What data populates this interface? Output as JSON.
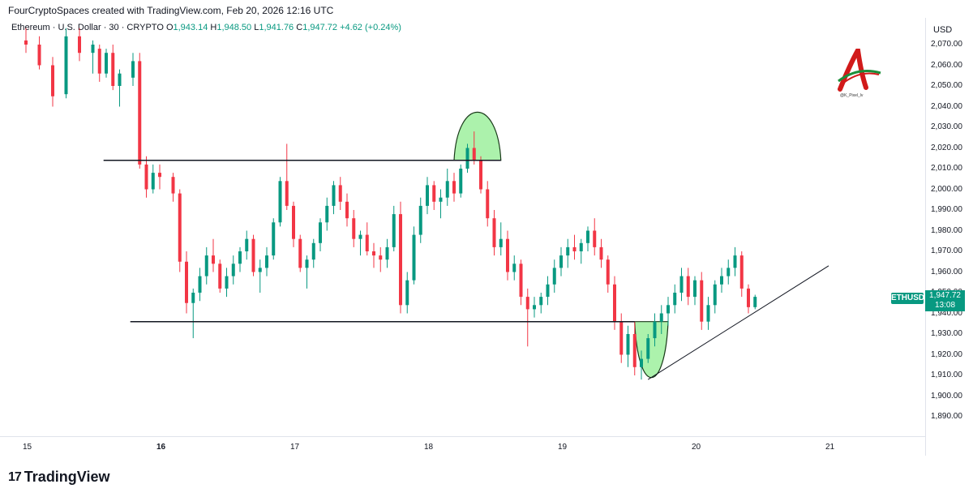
{
  "header": {
    "attribution": "FourCryptoSpaces created with TradingView.com, Feb 20, 2026 12:16 UTC"
  },
  "legend": {
    "symbol": "Ethereum · U.S. Dollar · 30 · CRYPTO",
    "o_label": "O",
    "o_val": "1,943.14",
    "h_label": "H",
    "h_val": "1,948.50",
    "l_label": "L",
    "l_val": "1,941.76",
    "c_label": "C",
    "c_val": "1,947.72",
    "change": "+4.62 (+0.24%)"
  },
  "axis": {
    "currency": "USD",
    "y_ticks": [
      "2,070.00",
      "2,060.00",
      "2,050.00",
      "2,040.00",
      "2,030.00",
      "2,020.00",
      "2,010.00",
      "2,000.00",
      "1,990.00",
      "1,980.00",
      "1,970.00",
      "1,960.00",
      "1,950.00",
      "1,940.00",
      "1,930.00",
      "1,920.00",
      "1,910.00",
      "1,900.00",
      "1,890.00"
    ],
    "x_ticks": [
      "15",
      "16",
      "17",
      "18",
      "19",
      "20",
      "21"
    ]
  },
  "price_tag": {
    "symbol": "ETHUSD",
    "price": "1,947.72",
    "countdown": "13:08"
  },
  "watermark": {
    "brand": "TradingView",
    "mark": "17"
  },
  "logo": {
    "handle": "@K_Pixel_lv"
  },
  "colors": {
    "up": "#089981",
    "down": "#f23645",
    "highlight": "#90ee90"
  },
  "chart_data": {
    "type": "candlestick",
    "symbol": "ETHUSD",
    "interval": "30",
    "x_range_days": [
      15,
      21
    ],
    "ylim": [
      1885,
      2078
    ],
    "grid": false,
    "candles": [
      [
        15.0,
        2072,
        2078,
        2066,
        2070
      ],
      [
        15.1,
        2070,
        2074,
        2058,
        2060
      ],
      [
        15.2,
        2060,
        2064,
        2040,
        2045
      ],
      [
        15.3,
        2046,
        2078,
        2044,
        2074
      ],
      [
        15.4,
        2074,
        2078,
        2062,
        2066
      ],
      [
        15.5,
        2066,
        2072,
        2056,
        2070
      ],
      [
        15.55,
        2068,
        2070,
        2052,
        2056
      ],
      [
        15.6,
        2056,
        2068,
        2054,
        2066
      ],
      [
        15.65,
        2066,
        2070,
        2048,
        2050
      ],
      [
        15.7,
        2050,
        2058,
        2040,
        2056
      ],
      [
        15.8,
        2054,
        2066,
        2050,
        2062
      ],
      [
        15.85,
        2062,
        2066,
        2010,
        2012
      ],
      [
        15.9,
        2012,
        2016,
        1996,
        2000
      ],
      [
        15.95,
        2000,
        2012,
        1998,
        2008
      ],
      [
        16.0,
        2008,
        2012,
        2000,
        2006
      ],
      [
        16.1,
        2006,
        2008,
        1994,
        1998
      ],
      [
        16.15,
        1998,
        2000,
        1960,
        1965
      ],
      [
        16.2,
        1965,
        1970,
        1940,
        1945
      ],
      [
        16.25,
        1945,
        1952,
        1928,
        1950
      ],
      [
        16.3,
        1950,
        1962,
        1946,
        1958
      ],
      [
        16.35,
        1958,
        1972,
        1954,
        1968
      ],
      [
        16.4,
        1968,
        1976,
        1960,
        1964
      ],
      [
        16.45,
        1964,
        1966,
        1950,
        1952
      ],
      [
        16.5,
        1952,
        1962,
        1948,
        1958
      ],
      [
        16.55,
        1958,
        1968,
        1954,
        1964
      ],
      [
        16.6,
        1964,
        1972,
        1960,
        1970
      ],
      [
        16.65,
        1970,
        1980,
        1966,
        1976
      ],
      [
        16.7,
        1976,
        1978,
        1958,
        1960
      ],
      [
        16.75,
        1960,
        1966,
        1950,
        1962
      ],
      [
        16.8,
        1962,
        1972,
        1958,
        1968
      ],
      [
        16.85,
        1968,
        1986,
        1966,
        1984
      ],
      [
        16.9,
        1984,
        2006,
        1982,
        2004
      ],
      [
        16.95,
        2004,
        2022,
        1990,
        1992
      ],
      [
        17.0,
        1992,
        1994,
        1972,
        1976
      ],
      [
        17.05,
        1976,
        1978,
        1960,
        1962
      ],
      [
        17.1,
        1962,
        1968,
        1952,
        1966
      ],
      [
        17.15,
        1966,
        1976,
        1962,
        1974
      ],
      [
        17.2,
        1974,
        1986,
        1970,
        1984
      ],
      [
        17.25,
        1984,
        1996,
        1980,
        1992
      ],
      [
        17.3,
        1992,
        2004,
        1988,
        2002
      ],
      [
        17.35,
        2002,
        2006,
        1990,
        1994
      ],
      [
        17.4,
        1994,
        1998,
        1982,
        1986
      ],
      [
        17.45,
        1986,
        1990,
        1972,
        1976
      ],
      [
        17.5,
        1976,
        1980,
        1968,
        1978
      ],
      [
        17.55,
        1978,
        1984,
        1968,
        1970
      ],
      [
        17.6,
        1970,
        1974,
        1962,
        1968
      ],
      [
        17.65,
        1968,
        1972,
        1960,
        1966
      ],
      [
        17.7,
        1966,
        1976,
        1962,
        1972
      ],
      [
        17.75,
        1972,
        1992,
        1970,
        1988
      ],
      [
        17.8,
        1988,
        1994,
        1940,
        1944
      ],
      [
        17.85,
        1944,
        1960,
        1940,
        1956
      ],
      [
        17.9,
        1956,
        1982,
        1954,
        1978
      ],
      [
        17.95,
        1978,
        1996,
        1974,
        1992
      ],
      [
        18.0,
        1992,
        2006,
        1988,
        2002
      ],
      [
        18.05,
        2002,
        2004,
        1990,
        1994
      ],
      [
        18.1,
        1994,
        2000,
        1986,
        1996
      ],
      [
        18.15,
        1996,
        2010,
        1992,
        2004
      ],
      [
        18.2,
        2004,
        2008,
        1994,
        1998
      ],
      [
        18.25,
        1998,
        2012,
        1996,
        2010
      ],
      [
        18.3,
        2010,
        2022,
        2008,
        2020
      ],
      [
        18.35,
        2020,
        2028,
        2012,
        2014
      ],
      [
        18.4,
        2014,
        2016,
        1998,
        2000
      ],
      [
        18.45,
        2000,
        2004,
        1982,
        1986
      ],
      [
        18.5,
        1986,
        1990,
        1968,
        1972
      ],
      [
        18.55,
        1972,
        1984,
        1968,
        1976
      ],
      [
        18.6,
        1976,
        1980,
        1956,
        1960
      ],
      [
        18.65,
        1960,
        1968,
        1956,
        1964
      ],
      [
        18.7,
        1964,
        1966,
        1944,
        1948
      ],
      [
        18.75,
        1948,
        1952,
        1924,
        1942
      ],
      [
        18.8,
        1942,
        1948,
        1938,
        1944
      ],
      [
        18.85,
        1944,
        1950,
        1940,
        1948
      ],
      [
        18.9,
        1948,
        1958,
        1944,
        1954
      ],
      [
        18.95,
        1954,
        1966,
        1950,
        1962
      ],
      [
        19.0,
        1962,
        1972,
        1958,
        1968
      ],
      [
        19.05,
        1968,
        1976,
        1962,
        1972
      ],
      [
        19.1,
        1972,
        1978,
        1966,
        1970
      ],
      [
        19.15,
        1970,
        1976,
        1964,
        1974
      ],
      [
        19.2,
        1974,
        1982,
        1970,
        1980
      ],
      [
        19.25,
        1980,
        1986,
        1968,
        1972
      ],
      [
        19.3,
        1972,
        1976,
        1962,
        1966
      ],
      [
        19.35,
        1966,
        1968,
        1950,
        1954
      ],
      [
        19.4,
        1954,
        1958,
        1932,
        1936
      ],
      [
        19.45,
        1936,
        1940,
        1916,
        1920
      ],
      [
        19.5,
        1920,
        1934,
        1914,
        1930
      ],
      [
        19.55,
        1930,
        1936,
        1910,
        1914
      ],
      [
        19.6,
        1914,
        1922,
        1908,
        1918
      ],
      [
        19.65,
        1918,
        1930,
        1916,
        1928
      ],
      [
        19.7,
        1928,
        1940,
        1924,
        1936
      ],
      [
        19.75,
        1936,
        1944,
        1930,
        1940
      ],
      [
        19.8,
        1940,
        1948,
        1934,
        1944
      ],
      [
        19.85,
        1944,
        1954,
        1940,
        1950
      ],
      [
        19.9,
        1950,
        1962,
        1946,
        1958
      ],
      [
        19.95,
        1958,
        1962,
        1944,
        1948
      ],
      [
        20.0,
        1948,
        1958,
        1944,
        1956
      ],
      [
        20.05,
        1956,
        1960,
        1932,
        1936
      ],
      [
        20.1,
        1936,
        1948,
        1932,
        1944
      ],
      [
        20.15,
        1944,
        1956,
        1940,
        1954
      ],
      [
        20.2,
        1954,
        1962,
        1950,
        1958
      ],
      [
        20.25,
        1958,
        1966,
        1954,
        1962
      ],
      [
        20.3,
        1962,
        1972,
        1958,
        1968
      ],
      [
        20.35,
        1968,
        1970,
        1948,
        1952
      ],
      [
        20.4,
        1952,
        1954,
        1940,
        1943
      ],
      [
        20.45,
        1943,
        1949,
        1942,
        1948
      ]
    ],
    "annotations": {
      "resistance": {
        "x": [
          15.58,
          18.55
        ],
        "y": 2014
      },
      "support": {
        "x": [
          15.78,
          19.55
        ],
        "y": 1936
      },
      "trendline": {
        "x": [
          19.65,
          21.0
        ],
        "y": [
          1908,
          1963
        ]
      },
      "arc_top": {
        "x": [
          18.2,
          18.55
        ],
        "peak": 2038,
        "base": 2014
      },
      "arc_bottom": {
        "x": [
          19.55,
          19.8
        ],
        "trough": 1907,
        "top": 1936
      }
    }
  }
}
